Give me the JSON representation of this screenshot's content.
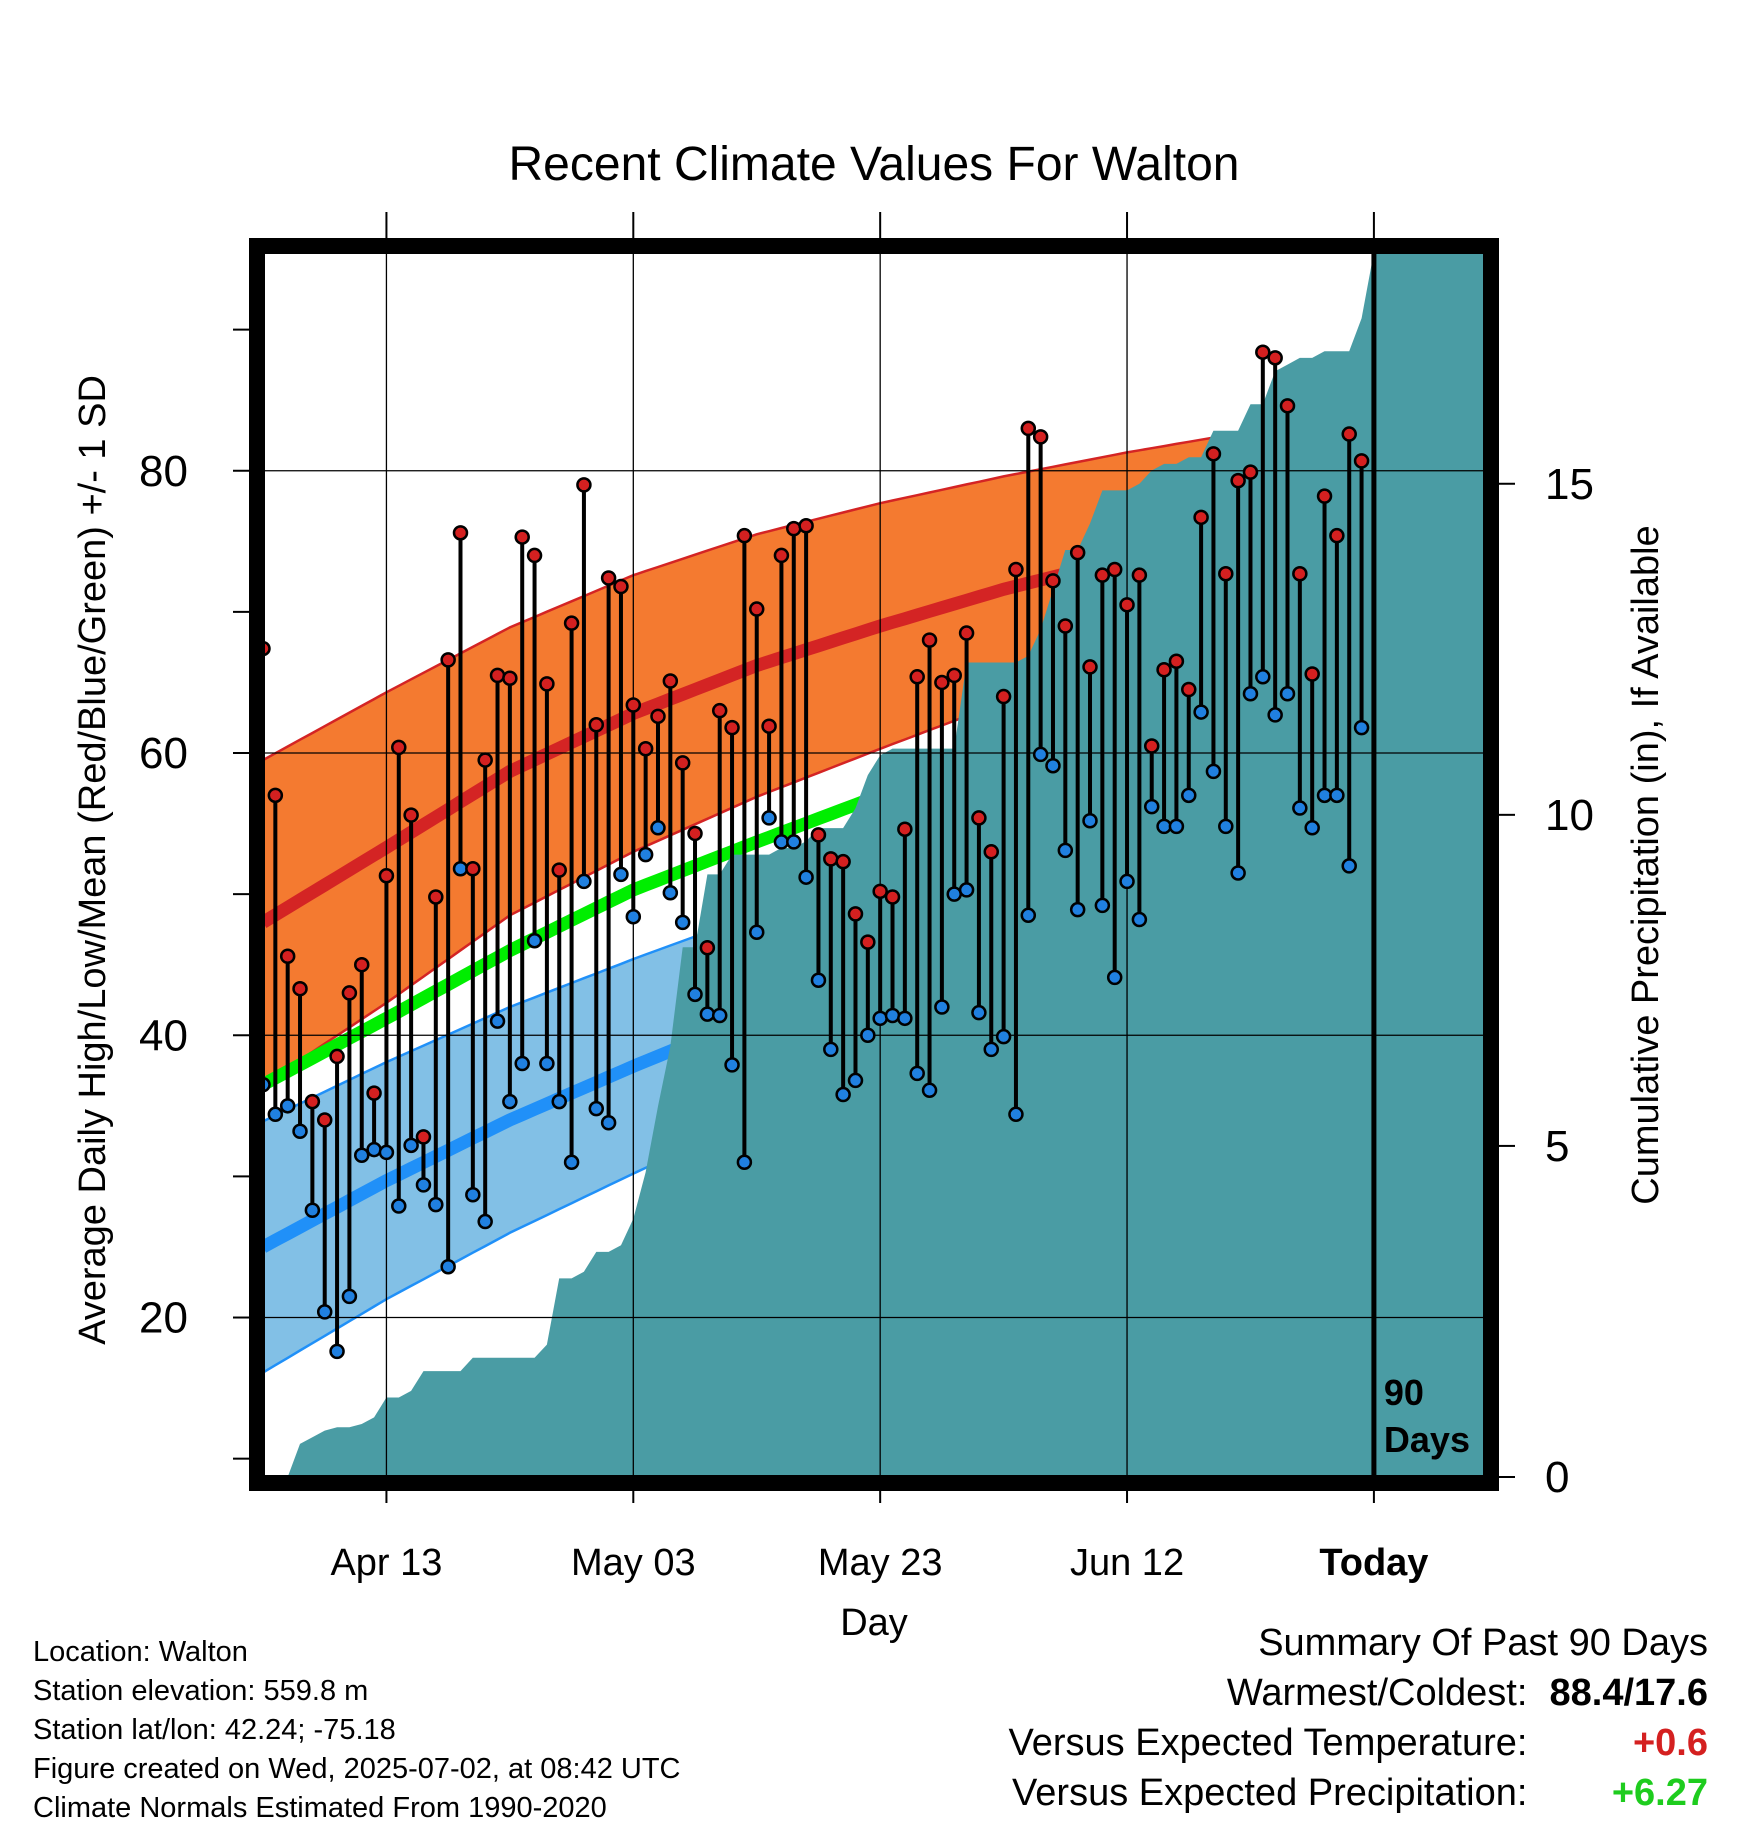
{
  "title": "Recent Climate Values For Walton",
  "y_left_label": "Average Daily High/Low/Mean (Red/Blue/Green) +/- 1 SD",
  "y_right_label": "Cumulative Precipitation (in), If Available",
  "x_label": "Day",
  "today_label": "Today",
  "days_marker_line1": "90",
  "days_marker_line2": "Days",
  "info": {
    "location": "Location: Walton",
    "elevation": "Station elevation: 559.8 m",
    "latlon": "Station lat/lon: 42.24; -75.18",
    "created": "Figure created on Wed, 2025-07-02, at 08:42 UTC",
    "normals": "Climate Normals Estimated From 1990-2020"
  },
  "summary": {
    "heading": "Summary Of Past 90 Days",
    "warm_cold_label": "Warmest/Coldest:",
    "warm_cold_value": "88.4/17.6",
    "temp_label": "Versus Expected Temperature:",
    "temp_value": "+0.6",
    "precip_label": "Versus Expected Precipitation:",
    "precip_value": "+6.27"
  },
  "colors": {
    "high_band": "#f47a30",
    "high_line": "#d42424",
    "low_band": "#82c0e6",
    "low_line": "#2090f8",
    "mean_line": "#00ee00",
    "precip": "#4a9ca4",
    "high_dot": "#d42020",
    "low_dot": "#2080e0"
  },
  "chart_data": {
    "type": "line",
    "x_range_days": [
      -90,
      9
    ],
    "y_left_range": [
      8.7,
      95.5
    ],
    "y_left_ticks": [
      20,
      40,
      60,
      80
    ],
    "y_right_range": [
      0,
      18.5
    ],
    "y_right_ticks": [
      0,
      5,
      10,
      15
    ],
    "x_ticks": [
      {
        "day": -80,
        "label": "Apr 13"
      },
      {
        "day": -60,
        "label": "May 03"
      },
      {
        "day": -40,
        "label": "May 23"
      },
      {
        "day": -20,
        "label": "Jun 12"
      },
      {
        "day": 0,
        "label": "Today"
      }
    ],
    "normals": {
      "days": [
        -90,
        -80,
        -70,
        -60,
        -50,
        -40,
        -30,
        -20,
        -10,
        0,
        9
      ],
      "high_mean": [
        48,
        53.3,
        58.7,
        62.8,
        66.2,
        69.0,
        71.6,
        73.8,
        75.8,
        77.5,
        78.5
      ],
      "high_sd": [
        11.5,
        11,
        10.2,
        9.8,
        9.3,
        8.7,
        8.0,
        7.5,
        7.0,
        6.5,
        6.2
      ],
      "mean": [
        36.5,
        41.2,
        46.0,
        50.3,
        53.7,
        57.0,
        59.8,
        62.3,
        64.5,
        66.1,
        66.9
      ],
      "low_mean": [
        25,
        29.7,
        34.0,
        37.8,
        41.4,
        44.5,
        47.5,
        50.2,
        52.4,
        54.1,
        55.0
      ],
      "low_sd": [
        8.9,
        8.4,
        8.0,
        7.6,
        7.2,
        6.8,
        6.5,
        6.2,
        6.0,
        5.9,
        5.9
      ]
    },
    "daily_high": [
      67.4,
      57.0,
      45.6,
      43.3,
      35.3,
      34.0,
      38.5,
      43.0,
      45.0,
      35.9,
      51.3,
      60.4,
      55.6,
      32.8,
      49.8,
      66.6,
      75.6,
      51.8,
      59.5,
      65.5,
      65.3,
      75.3,
      74.0,
      64.9,
      51.7,
      69.2,
      79.0,
      62.0,
      72.4,
      71.8,
      63.4,
      60.3,
      62.6,
      65.1,
      59.3,
      54.3,
      46.2,
      63.0,
      61.8,
      75.4,
      70.2,
      61.9,
      74.0,
      75.9,
      76.1,
      54.2,
      52.5,
      52.3,
      48.6,
      46.6,
      50.2,
      49.8,
      54.6,
      65.4,
      68.0,
      65.0,
      65.5,
      68.5,
      55.4,
      53.0,
      64.0,
      73.0,
      83.0,
      82.4,
      72.2,
      69.0,
      74.2,
      66.1,
      72.6,
      73.0,
      70.5,
      72.6,
      60.5,
      65.9,
      66.5,
      64.5,
      76.7,
      81.2,
      72.7,
      79.3,
      79.9,
      88.4,
      88.0,
      84.6,
      72.7,
      65.6,
      78.2,
      75.4,
      82.6,
      80.7
    ],
    "daily_low": [
      36.5,
      34.4,
      35.0,
      33.2,
      27.6,
      20.4,
      17.6,
      21.5,
      31.5,
      31.9,
      31.7,
      27.9,
      32.2,
      29.4,
      28.0,
      23.6,
      51.8,
      28.7,
      26.8,
      41.0,
      35.3,
      38.0,
      46.7,
      38.0,
      35.3,
      31.0,
      50.9,
      34.8,
      33.8,
      51.4,
      48.4,
      52.8,
      54.7,
      50.1,
      48.0,
      42.9,
      41.5,
      41.4,
      37.9,
      31.0,
      47.3,
      55.4,
      53.7,
      53.7,
      51.2,
      43.9,
      39.0,
      35.8,
      36.8,
      40.0,
      41.2,
      41.4,
      41.2,
      37.3,
      36.1,
      42.0,
      50.0,
      50.3,
      41.6,
      39.0,
      39.9,
      34.4,
      48.5,
      59.9,
      59.1,
      53.1,
      48.9,
      55.2,
      49.2,
      44.1,
      50.9,
      48.2,
      56.2,
      54.8,
      54.8,
      57.0,
      62.9,
      58.7,
      54.8,
      51.5,
      64.2,
      65.4,
      62.7,
      64.2,
      56.1,
      54.7,
      57.0,
      57.0,
      52.0,
      61.8
    ],
    "cumulative_precip": [
      0,
      0,
      0,
      0.5,
      0.6,
      0.7,
      0.75,
      0.75,
      0.8,
      0.9,
      1.2,
      1.2,
      1.3,
      1.6,
      1.6,
      1.6,
      1.6,
      1.8,
      1.8,
      1.8,
      1.8,
      1.8,
      1.8,
      2.0,
      3.0,
      3.0,
      3.1,
      3.4,
      3.4,
      3.5,
      3.9,
      4.6,
      5.6,
      6.5,
      8.0,
      8.0,
      9.1,
      9.1,
      9.4,
      9.4,
      9.4,
      9.4,
      9.5,
      9.5,
      9.6,
      9.8,
      9.8,
      9.8,
      10.1,
      10.6,
      10.9,
      11.0,
      11.0,
      11.0,
      11.0,
      11.0,
      11.0,
      12.3,
      12.3,
      12.3,
      12.3,
      12.3,
      12.4,
      12.8,
      13.4,
      14.0,
      14.0,
      14.4,
      14.9,
      14.9,
      14.9,
      15.0,
      15.2,
      15.3,
      15.3,
      15.4,
      15.4,
      15.8,
      15.8,
      15.8,
      16.2,
      16.2,
      16.7,
      16.8,
      16.9,
      16.9,
      17.0,
      17.0,
      17.0,
      17.5,
      18.5,
      18.5,
      18.5,
      18.5,
      18.5,
      18.5,
      18.5,
      18.5,
      18.5,
      18.5
    ]
  }
}
